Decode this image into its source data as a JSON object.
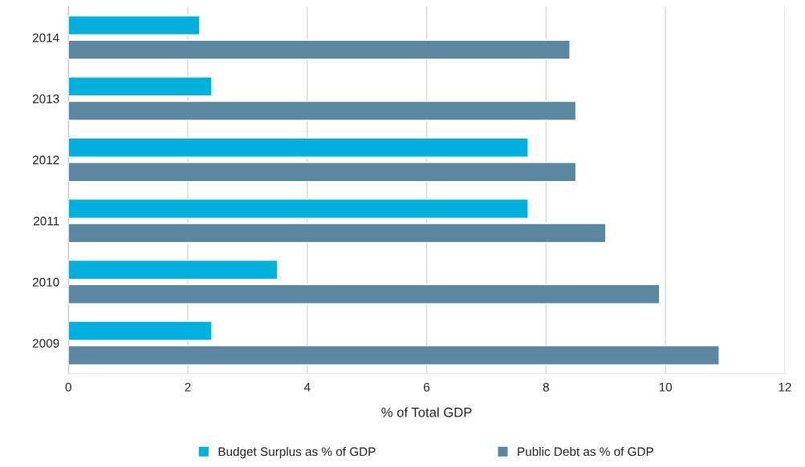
{
  "chart_data": {
    "type": "bar",
    "orientation": "horizontal",
    "xlabel": "% of Total GDP",
    "categories": [
      "2014",
      "2013",
      "2012",
      "2011",
      "2010",
      "2009"
    ],
    "series": [
      {
        "name": "Budget Surplus as % of GDP",
        "color": "#00b0dc",
        "values": [
          2.2,
          2.4,
          7.7,
          7.7,
          3.5,
          2.4
        ]
      },
      {
        "name": "Public Debt as % of GDP",
        "color": "#5b87a0",
        "values": [
          8.4,
          8.5,
          8.5,
          9.0,
          9.9,
          10.9
        ]
      }
    ],
    "xlim": [
      0,
      12
    ],
    "xticks": [
      0,
      2,
      4,
      6,
      8,
      10,
      12
    ],
    "grid": "x",
    "legend": "bottom"
  }
}
